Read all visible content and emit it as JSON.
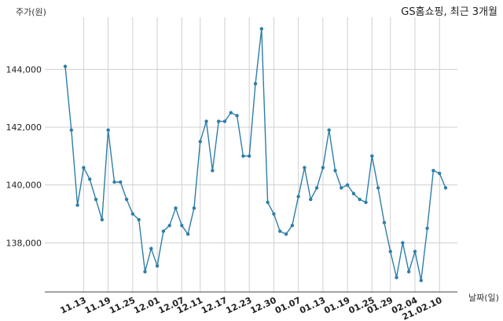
{
  "chart_data": {
    "type": "line",
    "title": "GS홈쇼핑, 최근 3개월",
    "ylabel": "주가(원)",
    "xlabel": "날짜(일)",
    "ylim": [
      136300,
      145800
    ],
    "grid": true,
    "line_color": "#2e7ea8",
    "y_ticks": [
      138000,
      140000,
      142000,
      144000
    ],
    "y_tick_labels": [
      "138,000",
      "140,000",
      "142,000",
      "144,000"
    ],
    "x_tick_labels": [
      "11.13",
      "11.19",
      "11.25",
      "12.01",
      "12.07",
      "12.11",
      "12.17",
      "12.23",
      "12.30",
      "01.07",
      "01.13",
      "01.19",
      "01.25",
      "01.29",
      "02.04",
      "21.02.10"
    ],
    "x_tick_index": [
      3,
      7,
      11,
      15,
      19,
      22,
      26,
      30,
      34,
      38,
      42,
      46,
      50,
      53,
      57,
      61
    ],
    "series": [
      {
        "values": [
          144100,
          141900,
          139300,
          140600,
          140200,
          139500,
          138800,
          141900,
          140100,
          140100,
          139500,
          139000,
          138800,
          137000,
          137800,
          137200,
          138400,
          138600,
          139200,
          138600,
          138300,
          139200,
          141500,
          142200,
          140500,
          142200,
          142200,
          142500,
          142400,
          141000,
          141000,
          143500,
          145400,
          139400,
          139000,
          138400,
          138300,
          138600,
          139600,
          140600,
          139500,
          139900,
          140600,
          141900,
          140500,
          139900,
          140000,
          139700,
          139500,
          139400,
          141000,
          139900,
          138700,
          137700,
          136800,
          138000,
          137000,
          137700,
          136700,
          138500,
          140500,
          140400,
          139900
        ]
      }
    ]
  }
}
